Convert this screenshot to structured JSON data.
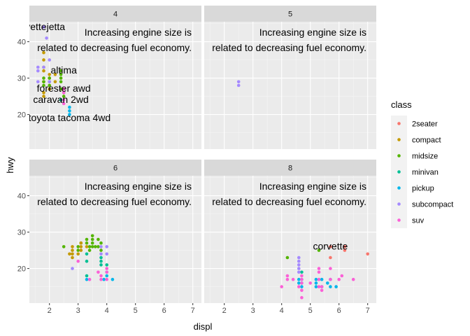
{
  "chart_data": {
    "type": "scatter",
    "facet_by": "cyl",
    "xlabel": "displ",
    "ylabel": "hwy",
    "xlim": [
      1.3,
      7.3
    ],
    "ylim": [
      10.5,
      45.5
    ],
    "xticks": [
      2,
      3,
      4,
      5,
      6,
      7
    ],
    "yticks": [
      20,
      30,
      40
    ],
    "annotation_lines": [
      "Increasing engine size is",
      "related to decreasing fuel economy."
    ],
    "legend": {
      "title": "class",
      "position": "right",
      "entries": [
        {
          "name": "2seater",
          "color": "#F8766D"
        },
        {
          "name": "compact",
          "color": "#C49A00"
        },
        {
          "name": "midsize",
          "color": "#53B400"
        },
        {
          "name": "minivan",
          "color": "#00C094"
        },
        {
          "name": "pickup",
          "color": "#00B6EB"
        },
        {
          "name": "subcompact",
          "color": "#A58AFF"
        },
        {
          "name": "suv",
          "color": "#FB61D7"
        }
      ]
    },
    "panels": [
      {
        "strip": "4",
        "points": [
          {
            "x": 1.8,
            "y": 29,
            "class": "compact"
          },
          {
            "x": 1.8,
            "y": 29,
            "class": "compact"
          },
          {
            "x": 2.0,
            "y": 31,
            "class": "compact"
          },
          {
            "x": 2.0,
            "y": 30,
            "class": "compact"
          },
          {
            "x": 1.8,
            "y": 26,
            "class": "compact"
          },
          {
            "x": 1.8,
            "y": 25,
            "class": "compact"
          },
          {
            "x": 2.0,
            "y": 28,
            "class": "compact"
          },
          {
            "x": 2.0,
            "y": 27,
            "class": "compact"
          },
          {
            "x": 1.8,
            "y": 37,
            "class": "compact"
          },
          {
            "x": 1.8,
            "y": 35,
            "class": "compact"
          },
          {
            "x": 1.8,
            "y": 33,
            "class": "compact"
          },
          {
            "x": 1.8,
            "y": 32,
            "class": "compact"
          },
          {
            "x": 2.2,
            "y": 31,
            "class": "compact"
          },
          {
            "x": 2.2,
            "y": 29,
            "class": "compact"
          },
          {
            "x": 2.4,
            "y": 30,
            "class": "midsize"
          },
          {
            "x": 2.4,
            "y": 31,
            "class": "midsize"
          },
          {
            "x": 2.4,
            "y": 29,
            "class": "midsize"
          },
          {
            "x": 2.4,
            "y": 32,
            "class": "midsize"
          },
          {
            "x": 2.5,
            "y": 26,
            "class": "midsize"
          },
          {
            "x": 2.5,
            "y": 27,
            "class": "midsize"
          },
          {
            "x": 2.0,
            "y": 28,
            "class": "midsize"
          },
          {
            "x": 1.8,
            "y": 28,
            "class": "midsize"
          },
          {
            "x": 1.8,
            "y": 30,
            "class": "midsize"
          },
          {
            "x": 2.0,
            "y": 30,
            "class": "midsize"
          },
          {
            "x": 2.0,
            "y": 29,
            "class": "midsize"
          },
          {
            "x": 1.8,
            "y": 29,
            "class": "midsize"
          },
          {
            "x": 2.5,
            "y": 25,
            "class": "midsize"
          },
          {
            "x": 2.4,
            "y": 27,
            "class": "midsize"
          },
          {
            "x": 2.4,
            "y": 24,
            "class": "minivan"
          },
          {
            "x": 2.7,
            "y": 20,
            "class": "pickup"
          },
          {
            "x": 2.7,
            "y": 22,
            "class": "pickup"
          },
          {
            "x": 2.7,
            "y": 21,
            "class": "pickup"
          },
          {
            "x": 1.6,
            "y": 33,
            "class": "subcompact"
          },
          {
            "x": 1.6,
            "y": 32,
            "class": "subcompact"
          },
          {
            "x": 1.6,
            "y": 29,
            "class": "subcompact"
          },
          {
            "x": 1.8,
            "y": 33,
            "class": "subcompact"
          },
          {
            "x": 1.9,
            "y": 41,
            "class": "subcompact"
          },
          {
            "x": 2.0,
            "y": 35,
            "class": "subcompact"
          },
          {
            "x": 1.8,
            "y": 44,
            "class": "subcompact"
          },
          {
            "x": 2.0,
            "y": 29,
            "class": "subcompact"
          },
          {
            "x": 2.5,
            "y": 27,
            "class": "suv"
          },
          {
            "x": 2.5,
            "y": 23,
            "class": "suv"
          },
          {
            "x": 2.5,
            "y": 24,
            "class": "suv"
          },
          {
            "x": 2.5,
            "y": 26,
            "class": "suv"
          }
        ],
        "labels": [
          {
            "text": "corvette",
            "x": 1.9,
            "y": 44,
            "anchor": "end"
          },
          {
            "text": "jetta",
            "x": 1.9,
            "y": 44,
            "anchor": "start"
          },
          {
            "text": "altima",
            "x": 2.5,
            "y": 32,
            "anchor": "middle"
          },
          {
            "text": "forester awd",
            "x": 2.5,
            "y": 27,
            "anchor": "middle"
          },
          {
            "text": "caravan 2wd",
            "x": 2.4,
            "y": 24,
            "anchor": "middle"
          },
          {
            "text": "toyota tacoma 4wd",
            "x": 2.7,
            "y": 19,
            "anchor": "middle"
          }
        ]
      },
      {
        "strip": "5",
        "points": [
          {
            "x": 2.5,
            "y": 29,
            "class": "subcompact"
          },
          {
            "x": 2.5,
            "y": 28,
            "class": "subcompact"
          }
        ],
        "labels": []
      },
      {
        "strip": "6",
        "points": [
          {
            "x": 2.5,
            "y": 26,
            "class": "midsize"
          },
          {
            "x": 3.0,
            "y": 26,
            "class": "midsize"
          },
          {
            "x": 3.5,
            "y": 29,
            "class": "midsize"
          },
          {
            "x": 3.3,
            "y": 28,
            "class": "midsize"
          },
          {
            "x": 3.5,
            "y": 28,
            "class": "midsize"
          },
          {
            "x": 3.7,
            "y": 28,
            "class": "midsize"
          },
          {
            "x": 3.1,
            "y": 27,
            "class": "midsize"
          },
          {
            "x": 3.5,
            "y": 27,
            "class": "midsize"
          },
          {
            "x": 3.3,
            "y": 27,
            "class": "midsize"
          },
          {
            "x": 3.8,
            "y": 27,
            "class": "midsize"
          },
          {
            "x": 3.4,
            "y": 26,
            "class": "midsize"
          },
          {
            "x": 3.7,
            "y": 26,
            "class": "midsize"
          },
          {
            "x": 3.0,
            "y": 25,
            "class": "midsize"
          },
          {
            "x": 3.4,
            "y": 25,
            "class": "midsize"
          },
          {
            "x": 3.8,
            "y": 25,
            "class": "midsize"
          },
          {
            "x": 3.6,
            "y": 26,
            "class": "midsize"
          },
          {
            "x": 3.5,
            "y": 26,
            "class": "midsize"
          },
          {
            "x": 2.8,
            "y": 26,
            "class": "compact"
          },
          {
            "x": 3.1,
            "y": 26,
            "class": "compact"
          },
          {
            "x": 2.8,
            "y": 25,
            "class": "compact"
          },
          {
            "x": 3.1,
            "y": 25,
            "class": "compact"
          },
          {
            "x": 3.1,
            "y": 27,
            "class": "compact"
          },
          {
            "x": 2.8,
            "y": 23,
            "class": "compact"
          },
          {
            "x": 2.8,
            "y": 24,
            "class": "compact"
          },
          {
            "x": 2.7,
            "y": 24,
            "class": "compact"
          },
          {
            "x": 3.0,
            "y": 24,
            "class": "compact"
          },
          {
            "x": 3.3,
            "y": 26,
            "class": "compact"
          },
          {
            "x": 3.3,
            "y": 22,
            "class": "minivan"
          },
          {
            "x": 3.3,
            "y": 24,
            "class": "minivan"
          },
          {
            "x": 3.3,
            "y": 18,
            "class": "minivan"
          },
          {
            "x": 3.8,
            "y": 22,
            "class": "minivan"
          },
          {
            "x": 3.8,
            "y": 23,
            "class": "minivan"
          },
          {
            "x": 3.8,
            "y": 21,
            "class": "minivan"
          },
          {
            "x": 4.0,
            "y": 21,
            "class": "minivan"
          },
          {
            "x": 3.3,
            "y": 17,
            "class": "pickup"
          },
          {
            "x": 3.9,
            "y": 17,
            "class": "pickup"
          },
          {
            "x": 4.0,
            "y": 19,
            "class": "pickup"
          },
          {
            "x": 4.2,
            "y": 17,
            "class": "pickup"
          },
          {
            "x": 4.0,
            "y": 18,
            "class": "pickup"
          },
          {
            "x": 3.8,
            "y": 26,
            "class": "subcompact"
          },
          {
            "x": 4.0,
            "y": 26,
            "class": "subcompact"
          },
          {
            "x": 3.8,
            "y": 24,
            "class": "subcompact"
          },
          {
            "x": 4.0,
            "y": 24,
            "class": "subcompact"
          },
          {
            "x": 2.8,
            "y": 20,
            "class": "subcompact"
          },
          {
            "x": 3.0,
            "y": 22,
            "class": "suv"
          },
          {
            "x": 3.4,
            "y": 17,
            "class": "suv"
          },
          {
            "x": 3.7,
            "y": 19,
            "class": "suv"
          },
          {
            "x": 4.0,
            "y": 17,
            "class": "suv"
          },
          {
            "x": 4.0,
            "y": 19,
            "class": "suv"
          },
          {
            "x": 3.8,
            "y": 18,
            "class": "suv"
          },
          {
            "x": 4.0,
            "y": 20,
            "class": "suv"
          },
          {
            "x": 3.8,
            "y": 17,
            "class": "suv"
          }
        ],
        "labels": []
      },
      {
        "strip": "8",
        "points": [
          {
            "x": 5.7,
            "y": 26,
            "class": "2seater"
          },
          {
            "x": 6.2,
            "y": 26,
            "class": "2seater"
          },
          {
            "x": 6.2,
            "y": 25,
            "class": "2seater"
          },
          {
            "x": 7.0,
            "y": 24,
            "class": "2seater"
          },
          {
            "x": 5.7,
            "y": 23,
            "class": "2seater"
          },
          {
            "x": 4.2,
            "y": 23,
            "class": "midsize"
          },
          {
            "x": 5.3,
            "y": 25,
            "class": "midsize"
          },
          {
            "x": 4.7,
            "y": 19,
            "class": "minivan"
          },
          {
            "x": 4.7,
            "y": 17,
            "class": "pickup"
          },
          {
            "x": 4.7,
            "y": 16,
            "class": "pickup"
          },
          {
            "x": 5.2,
            "y": 17,
            "class": "pickup"
          },
          {
            "x": 5.2,
            "y": 16,
            "class": "pickup"
          },
          {
            "x": 5.2,
            "y": 15,
            "class": "pickup"
          },
          {
            "x": 5.7,
            "y": 15,
            "class": "pickup"
          },
          {
            "x": 5.9,
            "y": 15,
            "class": "pickup"
          },
          {
            "x": 4.6,
            "y": 16,
            "class": "pickup"
          },
          {
            "x": 5.4,
            "y": 17,
            "class": "pickup"
          },
          {
            "x": 5.4,
            "y": 15,
            "class": "pickup"
          },
          {
            "x": 4.7,
            "y": 15,
            "class": "pickup"
          },
          {
            "x": 5.7,
            "y": 17,
            "class": "pickup"
          },
          {
            "x": 5.6,
            "y": 16,
            "class": "pickup"
          },
          {
            "x": 4.6,
            "y": 17,
            "class": "pickup"
          },
          {
            "x": 4.6,
            "y": 23,
            "class": "subcompact"
          },
          {
            "x": 4.6,
            "y": 22,
            "class": "subcompact"
          },
          {
            "x": 4.6,
            "y": 21,
            "class": "subcompact"
          },
          {
            "x": 4.6,
            "y": 20,
            "class": "subcompact"
          },
          {
            "x": 4.6,
            "y": 19,
            "class": "subcompact"
          },
          {
            "x": 4.0,
            "y": 15,
            "class": "suv"
          },
          {
            "x": 4.2,
            "y": 17,
            "class": "suv"
          },
          {
            "x": 4.2,
            "y": 18,
            "class": "suv"
          },
          {
            "x": 4.4,
            "y": 17,
            "class": "suv"
          },
          {
            "x": 4.7,
            "y": 12,
            "class": "suv"
          },
          {
            "x": 4.7,
            "y": 14,
            "class": "suv"
          },
          {
            "x": 4.7,
            "y": 16,
            "class": "suv"
          },
          {
            "x": 4.7,
            "y": 17,
            "class": "suv"
          },
          {
            "x": 5.3,
            "y": 20,
            "class": "suv"
          },
          {
            "x": 5.3,
            "y": 19,
            "class": "suv"
          },
          {
            "x": 5.3,
            "y": 17,
            "class": "suv"
          },
          {
            "x": 5.3,
            "y": 15,
            "class": "suv"
          },
          {
            "x": 5.7,
            "y": 20,
            "class": "suv"
          },
          {
            "x": 5.7,
            "y": 17,
            "class": "suv"
          },
          {
            "x": 6.0,
            "y": 17,
            "class": "suv"
          },
          {
            "x": 6.1,
            "y": 18,
            "class": "suv"
          },
          {
            "x": 6.5,
            "y": 17,
            "class": "suv"
          },
          {
            "x": 5.4,
            "y": 14,
            "class": "suv"
          },
          {
            "x": 5.4,
            "y": 15,
            "class": "suv"
          },
          {
            "x": 4.6,
            "y": 15,
            "class": "suv"
          },
          {
            "x": 5.0,
            "y": 16,
            "class": "suv"
          },
          {
            "x": 4.7,
            "y": 18,
            "class": "suv"
          }
        ],
        "labels": [
          {
            "text": "corvette",
            "x": 5.7,
            "y": 26,
            "anchor": "middle"
          }
        ]
      }
    ]
  }
}
